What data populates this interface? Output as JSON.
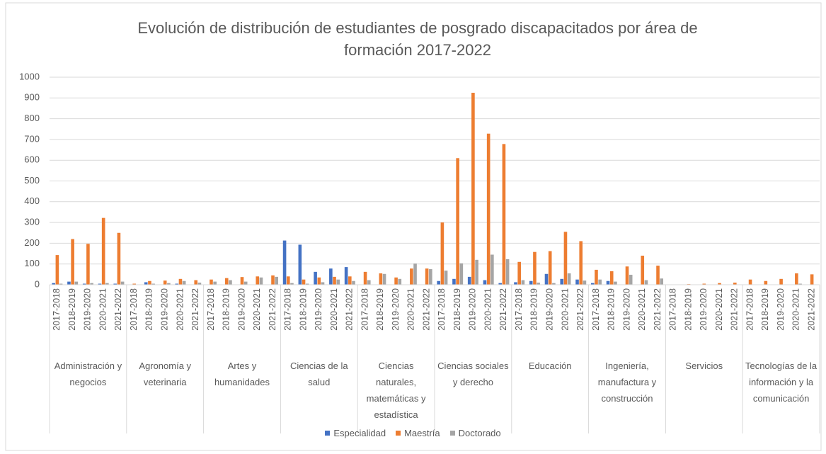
{
  "chart_data": {
    "type": "bar",
    "title": "Evolución de distribución de estudiantes de posgrado discapacitados por área de formación 2017-2022",
    "groups": [
      "Administración y negocios",
      "Agronomía y veterinaria",
      "Artes y humanidades",
      "Ciencias de la salud",
      "Ciencias naturales, matemáticas y estadística",
      "Ciencias sociales y derecho",
      "Educación",
      "Ingeniería, manufactura y construcción",
      "Servicios",
      "Tecnologías de la información y la comunicación"
    ],
    "categories": [
      "2017-2018",
      "2018-2019",
      "2019-2020",
      "2020-2021",
      "2021-2022",
      "2017-2018",
      "2018-2019",
      "2019-2020",
      "2020-2021",
      "2021-2022",
      "2017-2018",
      "2018-2019",
      "2019-2020",
      "2020-2021",
      "2021-2022",
      "2017-2018",
      "2018-2019",
      "2019-2020",
      "2020-2021",
      "2021-2022",
      "2017-2018",
      "2018-2019",
      "2019-2020",
      "2020-2021",
      "2021-2022",
      "2017-2018",
      "2018-2019",
      "2019-2020",
      "2020-2021",
      "2021-2022",
      "2017-2018",
      "2018-2019",
      "2019-2020",
      "2020-2021",
      "2021-2022",
      "2017-2018",
      "2018-2019",
      "2019-2020",
      "2020-2021",
      "2021-2022",
      "2017-2018",
      "2018-2019",
      "2019-2020",
      "2020-2021",
      "2021-2022",
      "2017-2018",
      "2018-2019",
      "2019-2020",
      "2020-2021",
      "2021-2022"
    ],
    "series": [
      {
        "name": "Especialidad",
        "color": "#4472c4",
        "values": [
          8,
          15,
          5,
          5,
          5,
          0,
          12,
          0,
          5,
          0,
          0,
          0,
          0,
          0,
          0,
          213,
          193,
          62,
          78,
          85,
          0,
          0,
          0,
          0,
          0,
          18,
          28,
          38,
          22,
          8,
          12,
          18,
          52,
          28,
          25,
          8,
          18,
          0,
          0,
          0,
          0,
          0,
          0,
          0,
          0,
          0,
          0,
          0,
          0,
          0
        ]
      },
      {
        "name": "Maestría",
        "color": "#ed7d31",
        "values": [
          143,
          220,
          197,
          322,
          250,
          5,
          18,
          20,
          28,
          22,
          25,
          32,
          37,
          40,
          45,
          40,
          25,
          35,
          38,
          40,
          62,
          55,
          35,
          78,
          78,
          300,
          610,
          925,
          728,
          678,
          110,
          158,
          162,
          255,
          210,
          72,
          65,
          88,
          140,
          92,
          0,
          3,
          5,
          8,
          10,
          25,
          18,
          28,
          55,
          50
        ]
      },
      {
        "name": "Doctorado",
        "color": "#a5a5a5",
        "values": [
          5,
          15,
          8,
          8,
          15,
          0,
          5,
          8,
          18,
          10,
          15,
          22,
          15,
          35,
          38,
          8,
          5,
          12,
          25,
          18,
          22,
          52,
          28,
          102,
          75,
          68,
          103,
          120,
          145,
          123,
          22,
          10,
          8,
          55,
          20,
          25,
          15,
          48,
          22,
          30,
          0,
          0,
          0,
          0,
          0,
          0,
          0,
          0,
          5,
          0
        ]
      }
    ],
    "ylim": [
      0,
      1000
    ],
    "yticks": [
      0,
      100,
      200,
      300,
      400,
      500,
      600,
      700,
      800,
      900,
      1000
    ],
    "grid": true
  }
}
